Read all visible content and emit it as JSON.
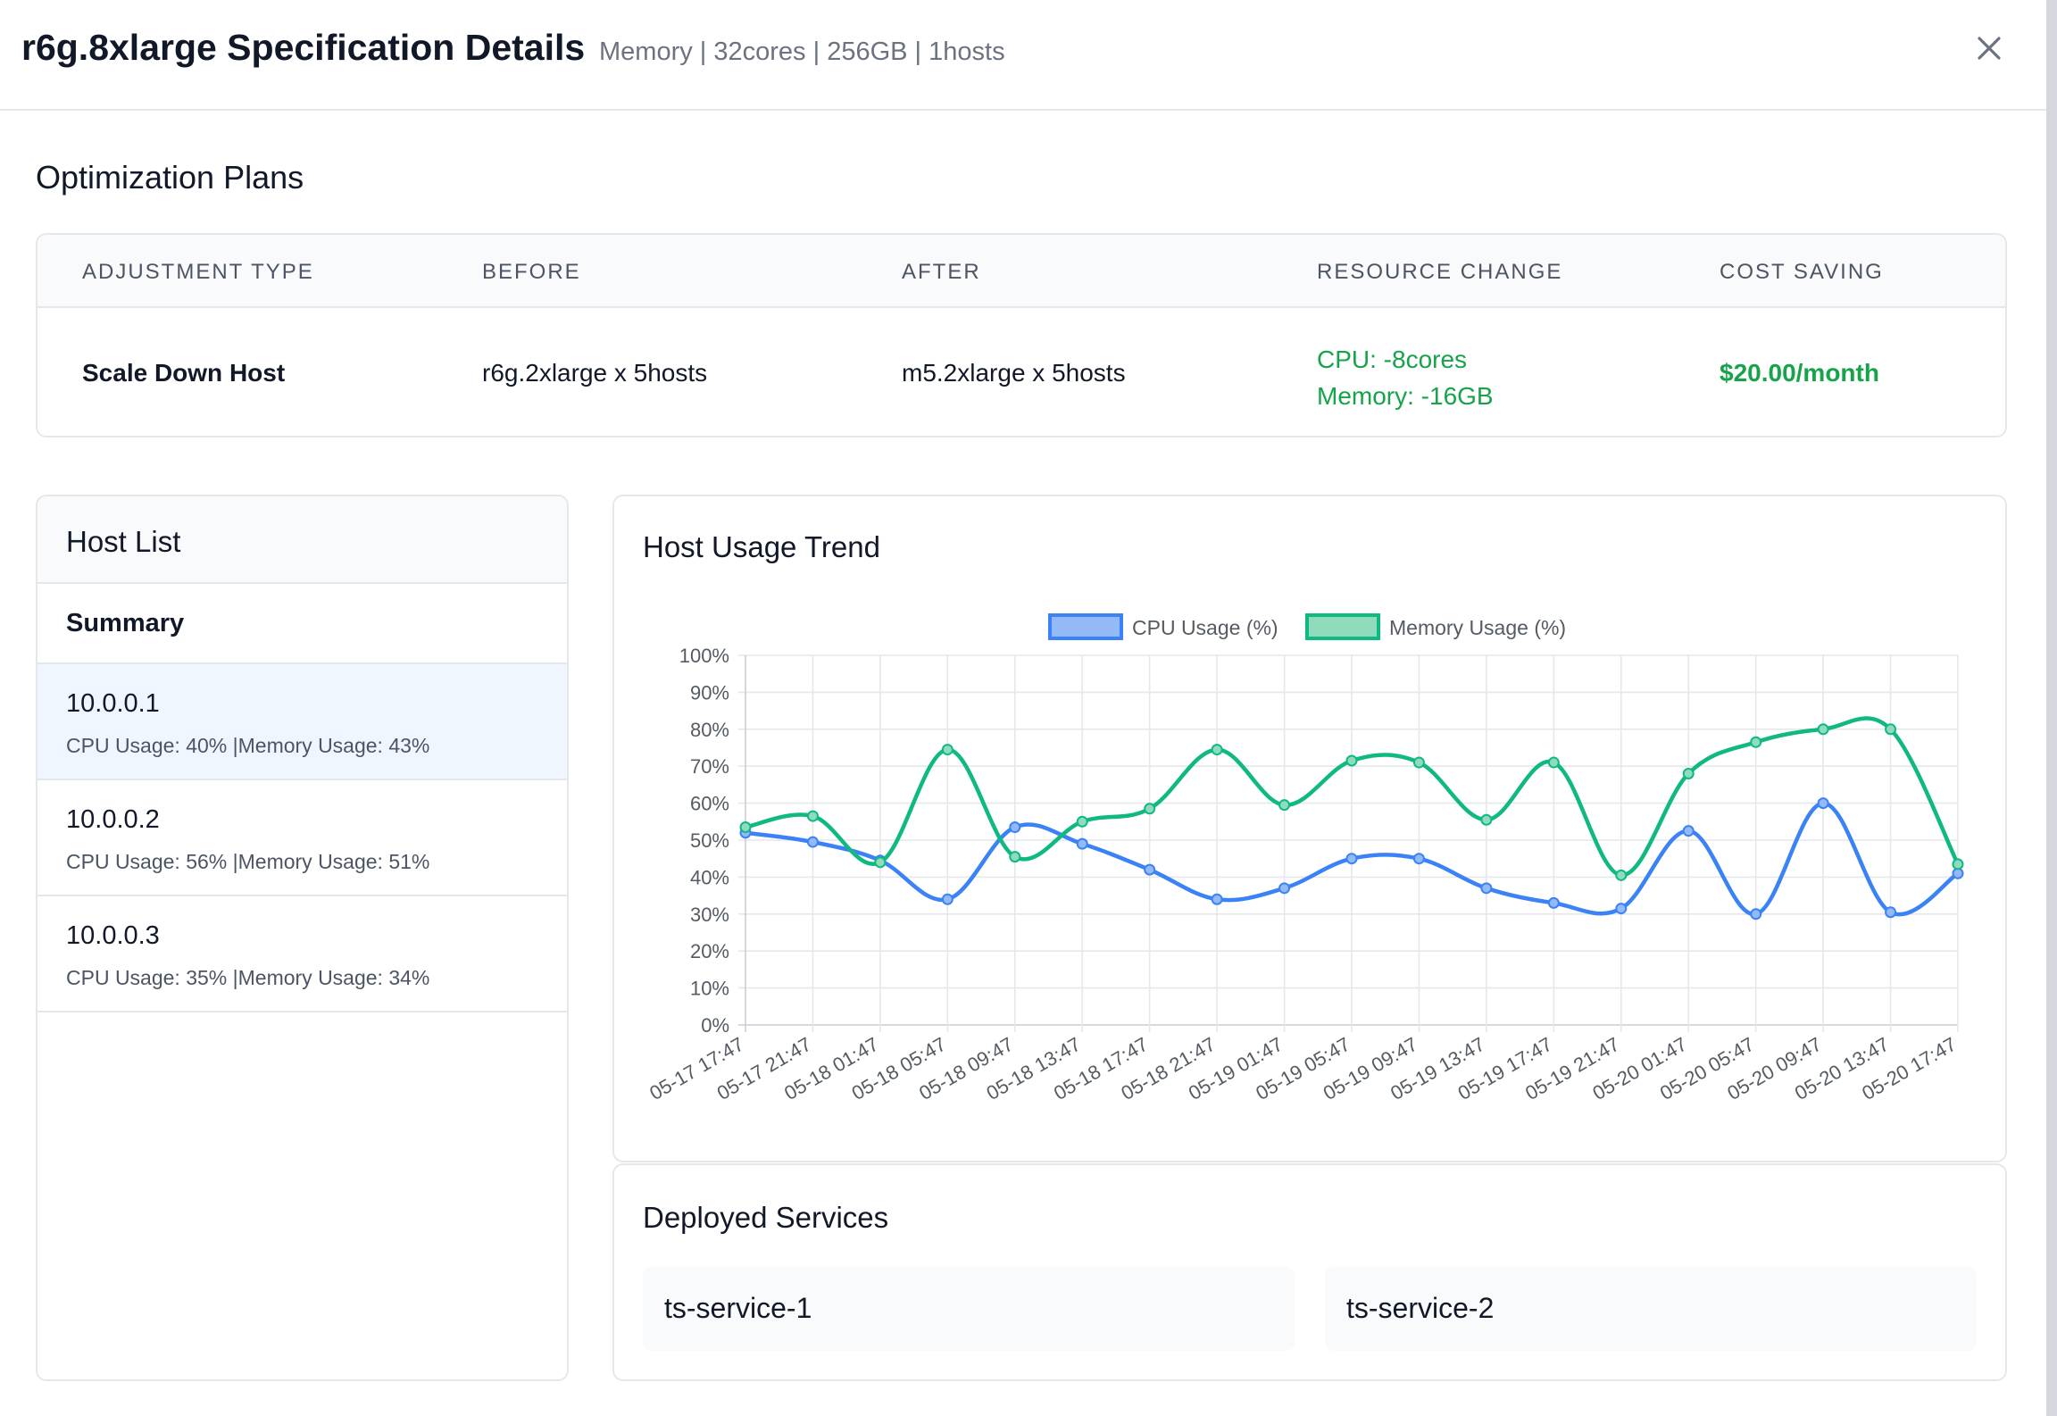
{
  "header": {
    "title": "r6g.8xlarge Specification Details",
    "subtitle": "Memory | 32cores | 256GB | 1hosts"
  },
  "plans": {
    "title": "Optimization Plans",
    "columns": [
      "ADJUSTMENT TYPE",
      "BEFORE",
      "AFTER",
      "RESOURCE CHANGE",
      "COST SAVING"
    ],
    "row": {
      "type": "Scale Down Host",
      "before": "r6g.2xlarge x 5hosts",
      "after": "m5.2xlarge x 5hosts",
      "cpu_change": "CPU: -8cores",
      "memory_change": "Memory: -16GB",
      "saving": "$20.00/month"
    }
  },
  "hosts": {
    "title": "Host List",
    "summary": "Summary",
    "items": [
      {
        "ip": "10.0.0.1",
        "stats": "CPU Usage: 40% |Memory Usage: 43%",
        "active": true
      },
      {
        "ip": "10.0.0.2",
        "stats": "CPU Usage: 56% |Memory Usage: 51%",
        "active": false
      },
      {
        "ip": "10.0.0.3",
        "stats": "CPU Usage: 35% |Memory Usage: 34%",
        "active": false
      }
    ]
  },
  "trend": {
    "title": "Host Usage Trend"
  },
  "services": {
    "title": "Deployed Services",
    "items": [
      "ts-service-1",
      "ts-service-2"
    ]
  },
  "colors": {
    "cpu": "#3b82f6",
    "memory": "#10b981",
    "saving": "#16a34a"
  },
  "chart_data": {
    "type": "line",
    "x": [
      "05-17 17:47",
      "05-17 21:47",
      "05-18 01:47",
      "05-18 05:47",
      "05-18 09:47",
      "05-18 13:47",
      "05-18 17:47",
      "05-18 21:47",
      "05-19 01:47",
      "05-19 05:47",
      "05-19 09:47",
      "05-19 13:47",
      "05-19 17:47",
      "05-19 21:47",
      "05-20 01:47",
      "05-20 05:47",
      "05-20 09:47",
      "05-20 13:47",
      "05-20 17:47"
    ],
    "series": [
      {
        "name": "CPU Usage (%)",
        "color": "#3b82f6",
        "values": [
          52,
          49.5,
          44.5,
          34,
          53.5,
          49,
          42,
          34,
          37,
          45,
          45,
          37,
          33,
          31.5,
          52.5,
          30,
          60,
          30.5,
          41
        ]
      },
      {
        "name": "Memory Usage (%)",
        "color": "#10b981",
        "values": [
          53.5,
          56.5,
          44,
          74.5,
          45.5,
          55,
          58.5,
          74.5,
          59.5,
          71.5,
          71,
          55.5,
          71,
          40.5,
          68,
          76.5,
          80,
          80,
          43.5
        ]
      }
    ],
    "yticks": [
      "0%",
      "10%",
      "20%",
      "30%",
      "40%",
      "50%",
      "60%",
      "70%",
      "80%",
      "90%",
      "100%"
    ],
    "ylim": [
      0,
      100
    ],
    "grid": true,
    "legend": "top-center"
  }
}
